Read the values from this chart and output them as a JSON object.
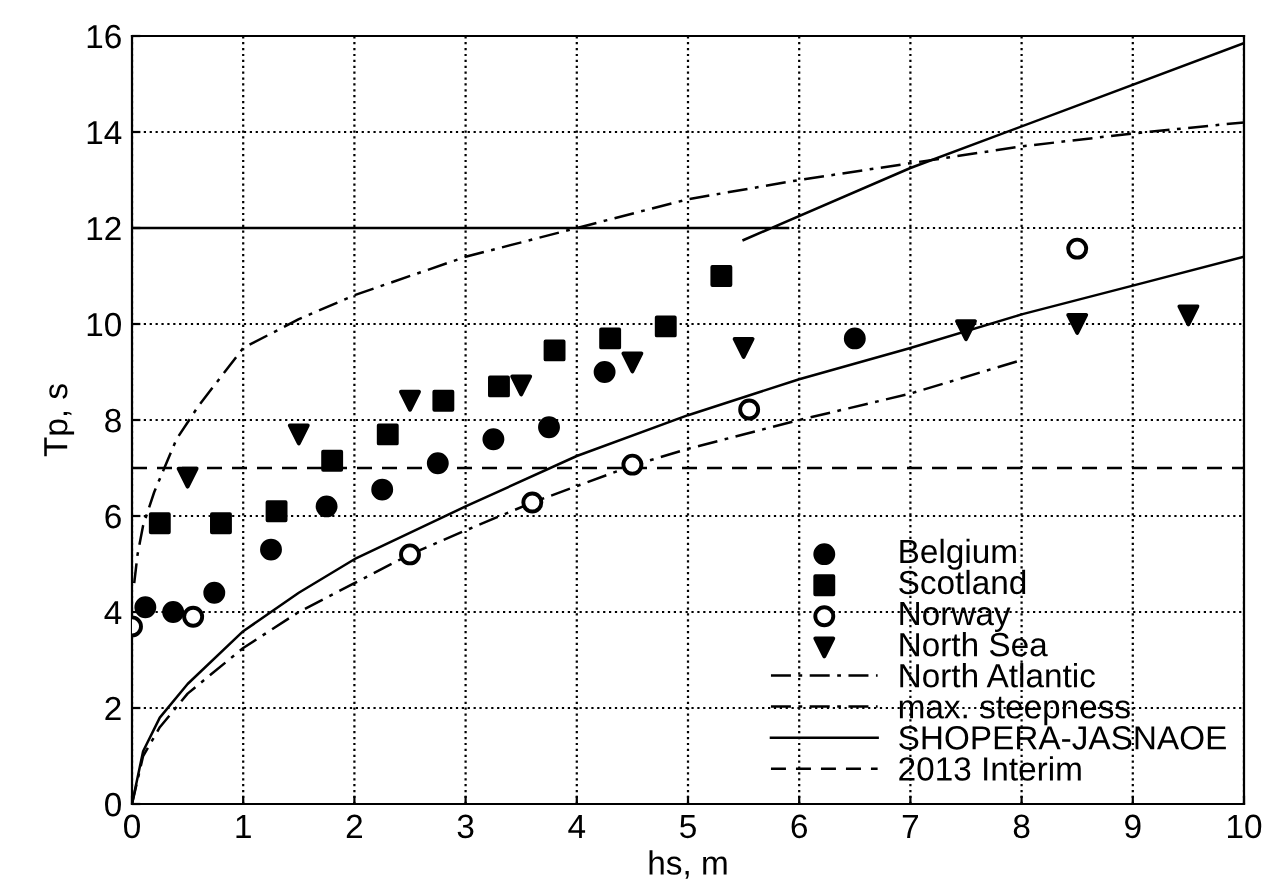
{
  "chart_data": {
    "type": "scatter",
    "xlabel": "hs, m",
    "ylabel": "Tp, s",
    "xlim": [
      0,
      10
    ],
    "ylim": [
      0,
      16
    ],
    "xticks": [
      0,
      1,
      2,
      3,
      4,
      5,
      6,
      7,
      8,
      9,
      10
    ],
    "yticks": [
      0,
      2,
      4,
      6,
      8,
      10,
      12,
      14,
      16
    ],
    "grid": true,
    "legend": "bottom right",
    "series": [
      {
        "name": "Belgium",
        "marker": "circle",
        "color": "#000000",
        "x": [
          0.12,
          0.37,
          0.74,
          1.25,
          1.75,
          2.25,
          2.75,
          3.25,
          3.75,
          4.25,
          6.5
        ],
        "values": [
          4.1,
          4.0,
          4.4,
          5.3,
          6.2,
          6.55,
          7.1,
          7.6,
          7.85,
          9.0,
          9.7
        ]
      },
      {
        "name": "Scotland",
        "marker": "square",
        "color": "#000000",
        "x": [
          0.25,
          0.8,
          1.3,
          1.8,
          2.3,
          2.8,
          3.3,
          3.8,
          4.3,
          4.8,
          5.3
        ],
        "values": [
          5.85,
          5.85,
          6.1,
          7.15,
          7.7,
          8.4,
          8.7,
          9.45,
          9.7,
          9.95,
          11.0
        ]
      },
      {
        "name": "Norway",
        "marker": "circle",
        "color": "#ffffff",
        "x": [
          0.0,
          0.55,
          2.5,
          3.6,
          4.5,
          5.55,
          8.5
        ],
        "values": [
          3.7,
          3.9,
          5.2,
          6.28,
          7.07,
          8.22,
          11.57
        ]
      },
      {
        "name": "North Sea",
        "marker": "triangle",
        "color": "#000000",
        "x": [
          0.5,
          1.5,
          2.5,
          3.5,
          4.5,
          5.5,
          7.5,
          8.5,
          9.5
        ],
        "values": [
          6.8,
          7.7,
          8.4,
          8.72,
          9.2,
          9.5,
          9.87,
          10.0,
          10.18
        ]
      },
      {
        "name": "North Atlantic",
        "type": "line",
        "line_style": "dashdot",
        "color": "#000000",
        "x": [
          0.02,
          0.05,
          0.1,
          0.2,
          0.4,
          0.6,
          1,
          1.5,
          2,
          3,
          4,
          5,
          6,
          7,
          8,
          9,
          10
        ],
        "values": [
          4.6,
          5.2,
          5.8,
          6.5,
          7.6,
          8.3,
          9.5,
          10.1,
          10.6,
          11.4,
          12.0,
          12.6,
          13.0,
          13.35,
          13.7,
          13.97,
          14.2
        ]
      },
      {
        "name": "max. steepness",
        "type": "line",
        "line_style": "dashdot",
        "color": "#000000",
        "x": [
          0,
          0.1,
          0.25,
          0.5,
          1,
          1.5,
          2,
          2.5,
          3,
          3.6,
          4.5,
          5,
          6,
          7,
          8
        ],
        "values": [
          0,
          1.0,
          1.6,
          2.3,
          3.25,
          4.0,
          4.6,
          5.2,
          5.7,
          6.28,
          7.05,
          7.4,
          8.0,
          8.55,
          9.25
        ]
      },
      {
        "name": "SHOPERA-JASNAOE",
        "type": "line",
        "line_style": "solid",
        "color": "#000000",
        "x": [
          0,
          0.1,
          0.25,
          0.5,
          1,
          1.5,
          2,
          3,
          4,
          5,
          6,
          7,
          8,
          9,
          10,
          null,
          0,
          5.9,
          null,
          5.5,
          7,
          8.5,
          10
        ],
        "values": [
          0,
          1.1,
          1.8,
          2.5,
          3.6,
          4.4,
          5.1,
          6.2,
          7.25,
          8.1,
          8.85,
          9.5,
          10.2,
          10.8,
          11.4,
          null,
          12,
          12,
          null,
          11.75,
          13.25,
          14.55,
          15.85
        ]
      },
      {
        "name": "2013 Interim",
        "type": "line",
        "line_style": "dashed",
        "color": "#000000",
        "x": [
          0,
          10
        ],
        "values": [
          7,
          7
        ]
      }
    ]
  }
}
